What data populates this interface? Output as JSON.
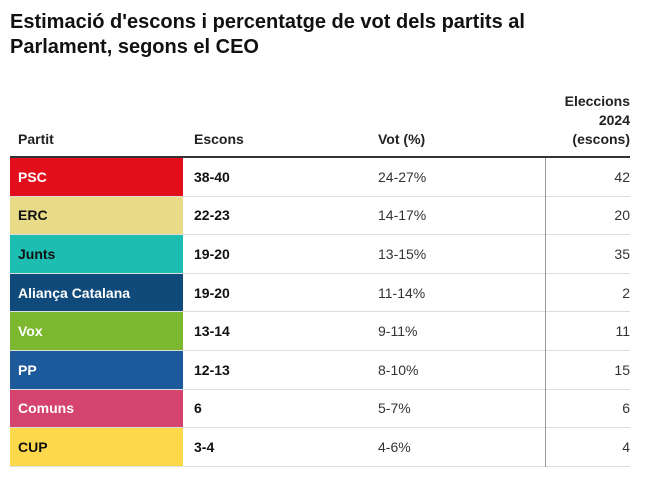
{
  "header": {
    "title": "Estimació d'escons i percentatge de vot dels partits al Parlament, segons el CEO"
  },
  "table": {
    "columns": [
      "Partit",
      "Escons",
      "Vot (%)",
      "Eleccions 2024 (escons)"
    ],
    "rows": [
      {
        "party": "PSC",
        "color": "#e30e1c",
        "text_color": "#ffffff",
        "seats": "38-40",
        "vote": "24-27%",
        "seats_2024": 42
      },
      {
        "party": "ERC",
        "color": "#e8da86",
        "text_color": "#111111",
        "seats": "22-23",
        "vote": "14-17%",
        "seats_2024": 20
      },
      {
        "party": "Junts",
        "color": "#1dbdb1",
        "text_color": "#111111",
        "seats": "19-20",
        "vote": "13-15%",
        "seats_2024": 35
      },
      {
        "party": "Aliança Catalana",
        "color": "#0f4a7a",
        "text_color": "#ffffff",
        "seats": "19-20",
        "vote": "11-14%",
        "seats_2024": 2
      },
      {
        "party": "Vox",
        "color": "#7cb82f",
        "text_color": "#ffffff",
        "seats": "13-14",
        "vote": "9-11%",
        "seats_2024": 11
      },
      {
        "party": "PP",
        "color": "#1d5a9c",
        "text_color": "#ffffff",
        "seats": "12-13",
        "vote": "8-10%",
        "seats_2024": 15
      },
      {
        "party": "Comuns",
        "color": "#d5446f",
        "text_color": "#ffffff",
        "seats": "6",
        "vote": "5-7%",
        "seats_2024": 6
      },
      {
        "party": "CUP",
        "color": "#fcd94b",
        "text_color": "#111111",
        "seats": "3-4",
        "vote": "4-6%",
        "seats_2024": 4
      }
    ]
  }
}
